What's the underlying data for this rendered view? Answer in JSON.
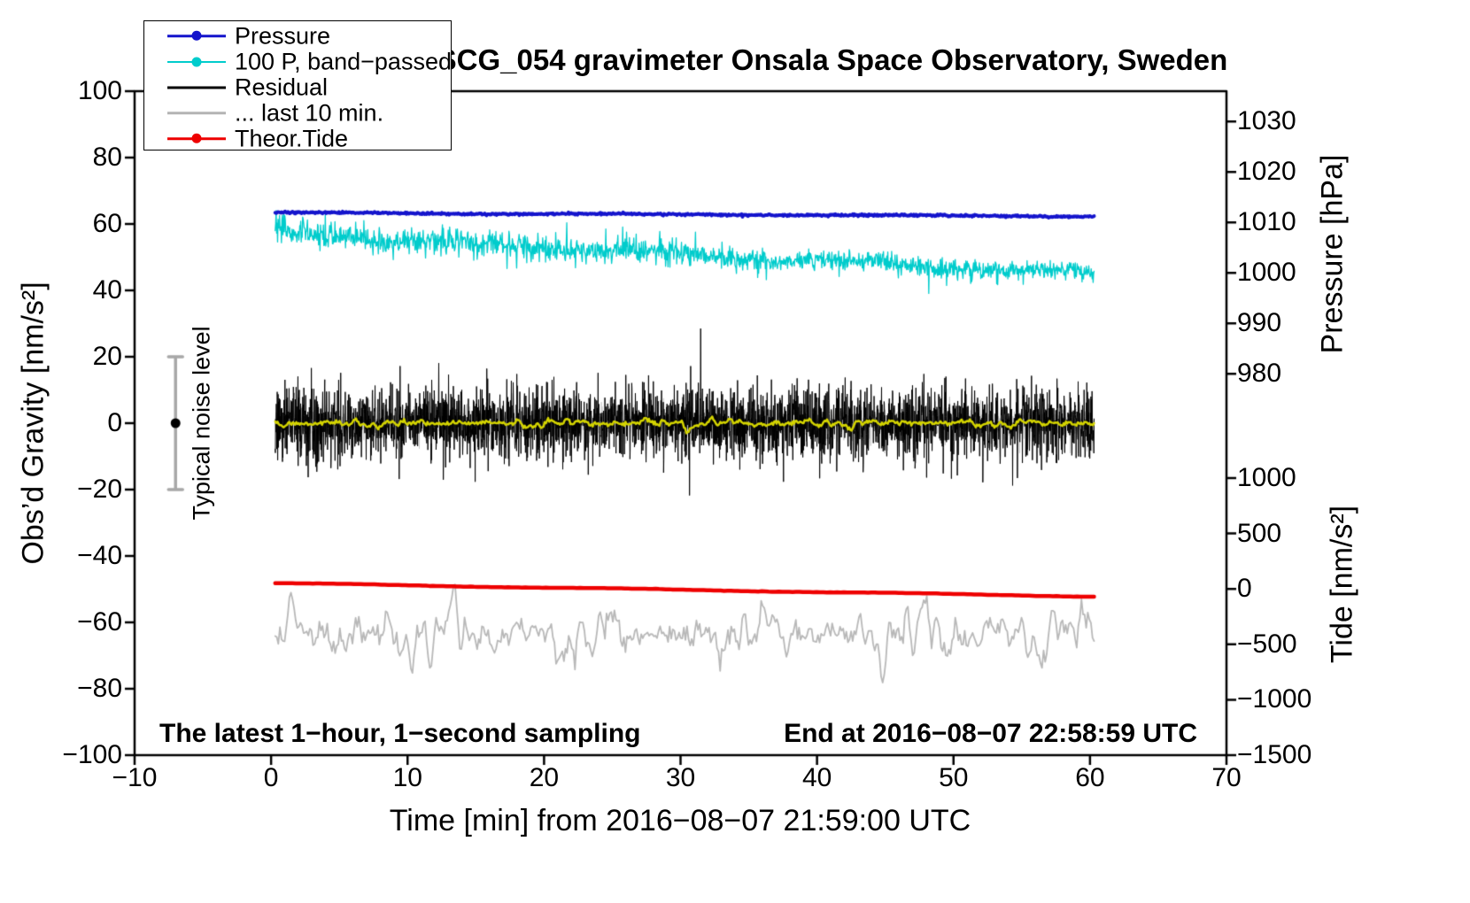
{
  "chart_data": {
    "type": "line",
    "title": "SCG_054 gravimeter Onsala Space Observatory, Sweden",
    "xlabel": "Time [min] from 2016−08−07 21:59:00 UTC",
    "ylabel_left": "Obs’d Gravity [nm/s²]",
    "ylabel_pressure": "Pressure [hPa]",
    "ylabel_tide": "Tide [nm/s²]",
    "xlim": [
      -10,
      70
    ],
    "ylim_left": [
      -100,
      100
    ],
    "xticks": [
      -10,
      0,
      10,
      20,
      30,
      40,
      50,
      60,
      70
    ],
    "yticks_left": [
      100,
      80,
      60,
      40,
      20,
      0,
      -20,
      -40,
      -60,
      -80,
      -100
    ],
    "pressure_ticks": [
      {
        "value": 1030,
        "g": 90.9
      },
      {
        "value": 1020,
        "g": 75.7
      },
      {
        "value": 1010,
        "g": 60.5
      },
      {
        "value": 1000,
        "g": 45.3
      },
      {
        "value": 990,
        "g": 30.1
      },
      {
        "value": 980,
        "g": 14.9
      }
    ],
    "tide_ticks": [
      {
        "value": 1000,
        "g": -16.5
      },
      {
        "value": 500,
        "g": -33.2
      },
      {
        "value": 0,
        "g": -49.9
      },
      {
        "value": -500,
        "g": -66.6
      },
      {
        "value": -1000,
        "g": -83.3
      },
      {
        "value": -1500,
        "g": -100
      }
    ],
    "legend": [
      {
        "label": "Pressure",
        "color": "#1414cc",
        "marker": true,
        "thickness": 3.5
      },
      {
        "label": "100 P, band−passed",
        "color": "#00cccc",
        "marker": true,
        "thickness": 2
      },
      {
        "label": "Residual",
        "color": "#000000",
        "marker": false,
        "thickness": 3
      },
      {
        "label": "... last 10 min.",
        "color": "#b4b4b4",
        "marker": false,
        "thickness": 3.5
      },
      {
        "label": "Theor.Tide",
        "color": "#ee0000",
        "marker": true,
        "thickness": 3.5
      }
    ],
    "noise_bar": {
      "label": "Typical noise level",
      "x": -7,
      "center": 0,
      "half_range": 20,
      "bar_color": "#a8a8a8",
      "dot_color": "#000000"
    },
    "notes": {
      "sampling": "The latest 1−hour, 1−second sampling",
      "end": "End at 2016−08−07 22:58:59 UTC"
    },
    "series": [
      {
        "name": "residual-backdrop",
        "kind": "noise",
        "color": "#cccccc",
        "x_range": [
          0.3,
          60.3
        ],
        "mean": 0,
        "noise": 2.6,
        "clamp": 9,
        "points": 2200,
        "width": 1
      },
      {
        "name": "last-10-min",
        "kind": "wiggle",
        "color": "#b8b8b8",
        "x_range": [
          0.3,
          60.3
        ],
        "mean": -63.5,
        "amplitude": 8,
        "jitter": 1.5,
        "floor": -79.5,
        "ceil": -43.5,
        "points": 520,
        "width": 1.8
      },
      {
        "name": "residual",
        "kind": "noise",
        "color": "#000000",
        "x_range": [
          0.3,
          60.3
        ],
        "mean": 0,
        "noise": 5.2,
        "clamp": 28.5,
        "points": 3600,
        "width": 1
      },
      {
        "name": "residual-smoothed",
        "kind": "wiggle",
        "color": "#d4d400",
        "x_range": [
          0.3,
          60.3
        ],
        "mean": 0,
        "amplitude": 1.4,
        "jitter": 0.3,
        "points": 700,
        "width": 2.5
      },
      {
        "name": "band-passed-pressure",
        "kind": "noisy-decline",
        "color": "#00cccc",
        "x_range": [
          0.3,
          60.3
        ],
        "start": 57.0,
        "end": 44.8,
        "noise_start": 3.6,
        "noise_end": 2.2,
        "points": 1700,
        "width": 1.3
      },
      {
        "name": "pressure",
        "kind": "trend",
        "color": "#1414cc",
        "x_range": [
          0.3,
          60.3
        ],
        "start": 63.4,
        "end": 62.3,
        "hpa_start": 1011.8,
        "hpa_end": 1011.1,
        "noise": 0.14,
        "points": 900,
        "width": 4
      },
      {
        "name": "theoretical-tide",
        "kind": "trend",
        "color": "#ee0000",
        "x_range": [
          0.3,
          60.3
        ],
        "start": -48.2,
        "end": -52.2,
        "tide_start": 50,
        "tide_end": -70,
        "noise": 0.02,
        "points": 240,
        "width": 4.5
      }
    ]
  }
}
